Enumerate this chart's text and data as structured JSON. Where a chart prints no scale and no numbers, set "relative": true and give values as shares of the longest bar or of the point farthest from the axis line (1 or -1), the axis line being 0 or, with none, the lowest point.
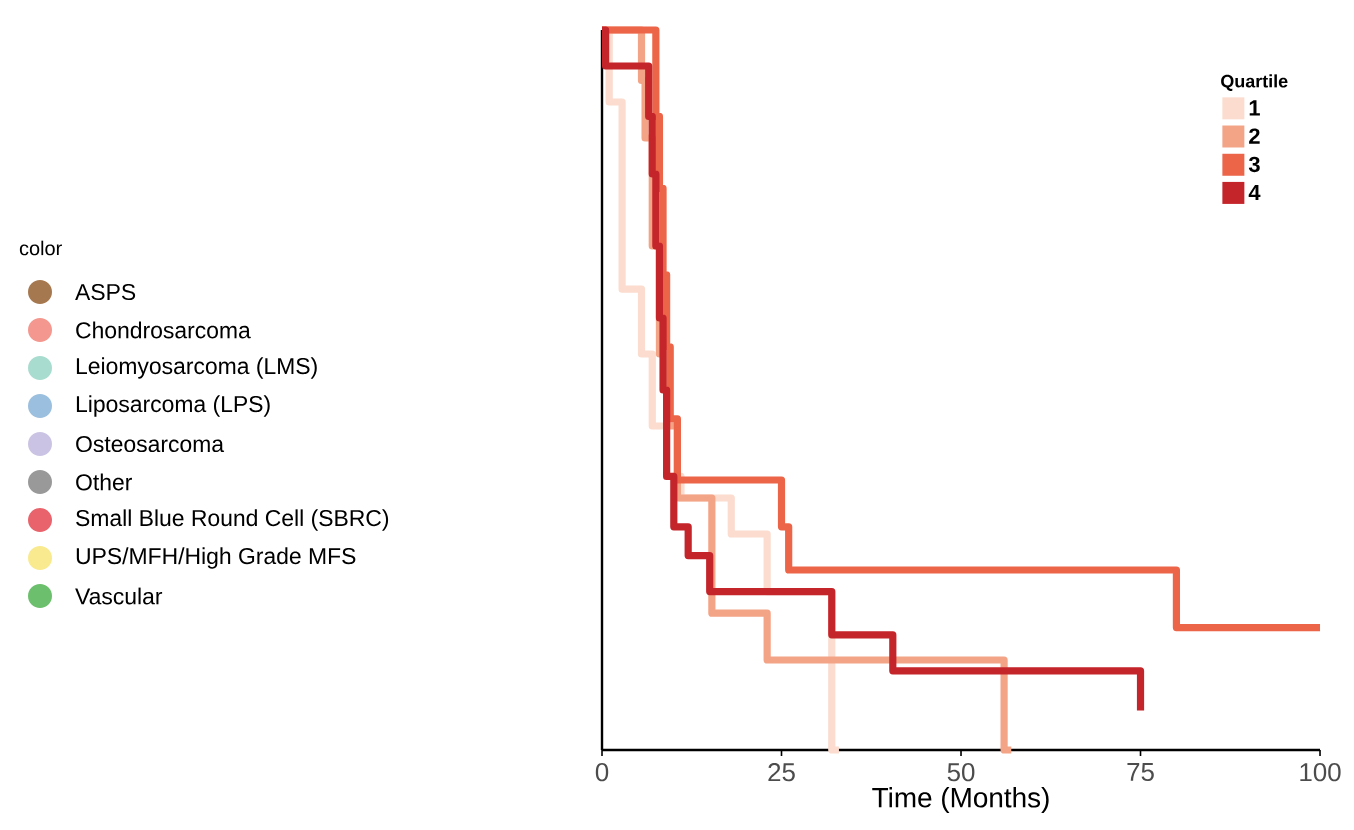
{
  "chart_data": [
    {
      "type": "other",
      "legend_title": "color",
      "categories": [
        "ASPS",
        "Chondrosarcoma",
        "Leiomyosarcoma (LMS)",
        "Liposarcoma (LPS)",
        "Osteosarcoma",
        "Other",
        "Small Blue Round Cell (SBRC)",
        "UPS/MFH/High Grade MFS",
        "Vascular"
      ],
      "colors": [
        "#a6784f",
        "#f4978e",
        "#a8dccf",
        "#9bbfde",
        "#cbc3e3",
        "#999999",
        "#e8636b",
        "#f9ea8f",
        "#6cbf6c"
      ]
    },
    {
      "type": "step",
      "xlabel": "Time (Months)",
      "legend_title": "Quartile",
      "legend": "top right",
      "relative": true,
      "xlim": [
        0,
        100
      ],
      "xticks": [
        0,
        25,
        50,
        75,
        100
      ],
      "series": [
        {
          "name": "1",
          "color": "#fbdccf",
          "x": [
            0,
            1,
            2.8,
            5.5,
            7,
            9,
            11,
            18,
            23,
            32,
            33
          ],
          "values": [
            1,
            0.9,
            0.64,
            0.55,
            0.45,
            0.38,
            0.35,
            0.3,
            0.22,
            0,
            0
          ]
        },
        {
          "name": "2",
          "color": "#f4a486",
          "x": [
            0,
            5.5,
            6,
            7,
            8,
            9,
            10.5,
            15.3,
            23,
            56,
            57
          ],
          "values": [
            1,
            0.93,
            0.85,
            0.7,
            0.55,
            0.45,
            0.35,
            0.19,
            0.125,
            0,
            0
          ]
        },
        {
          "name": "3",
          "color": "#ec6549",
          "x": [
            0,
            7.5,
            8,
            8.5,
            9,
            9.5,
            10.5,
            25,
            26,
            80,
            100
          ],
          "values": [
            1,
            0.88,
            0.78,
            0.66,
            0.56,
            0.46,
            0.375,
            0.31,
            0.25,
            0.17,
            0.17
          ]
        },
        {
          "name": "4",
          "color": "#c4252b",
          "x": [
            0,
            0.5,
            6.5,
            7,
            7.5,
            8,
            8.5,
            9,
            10,
            12,
            15,
            32,
            40.5,
            75
          ],
          "values": [
            1,
            0.95,
            0.88,
            0.8,
            0.7,
            0.6,
            0.5,
            0.38,
            0.31,
            0.27,
            0.22,
            0.16,
            0.11,
            0.055
          ]
        }
      ]
    }
  ]
}
